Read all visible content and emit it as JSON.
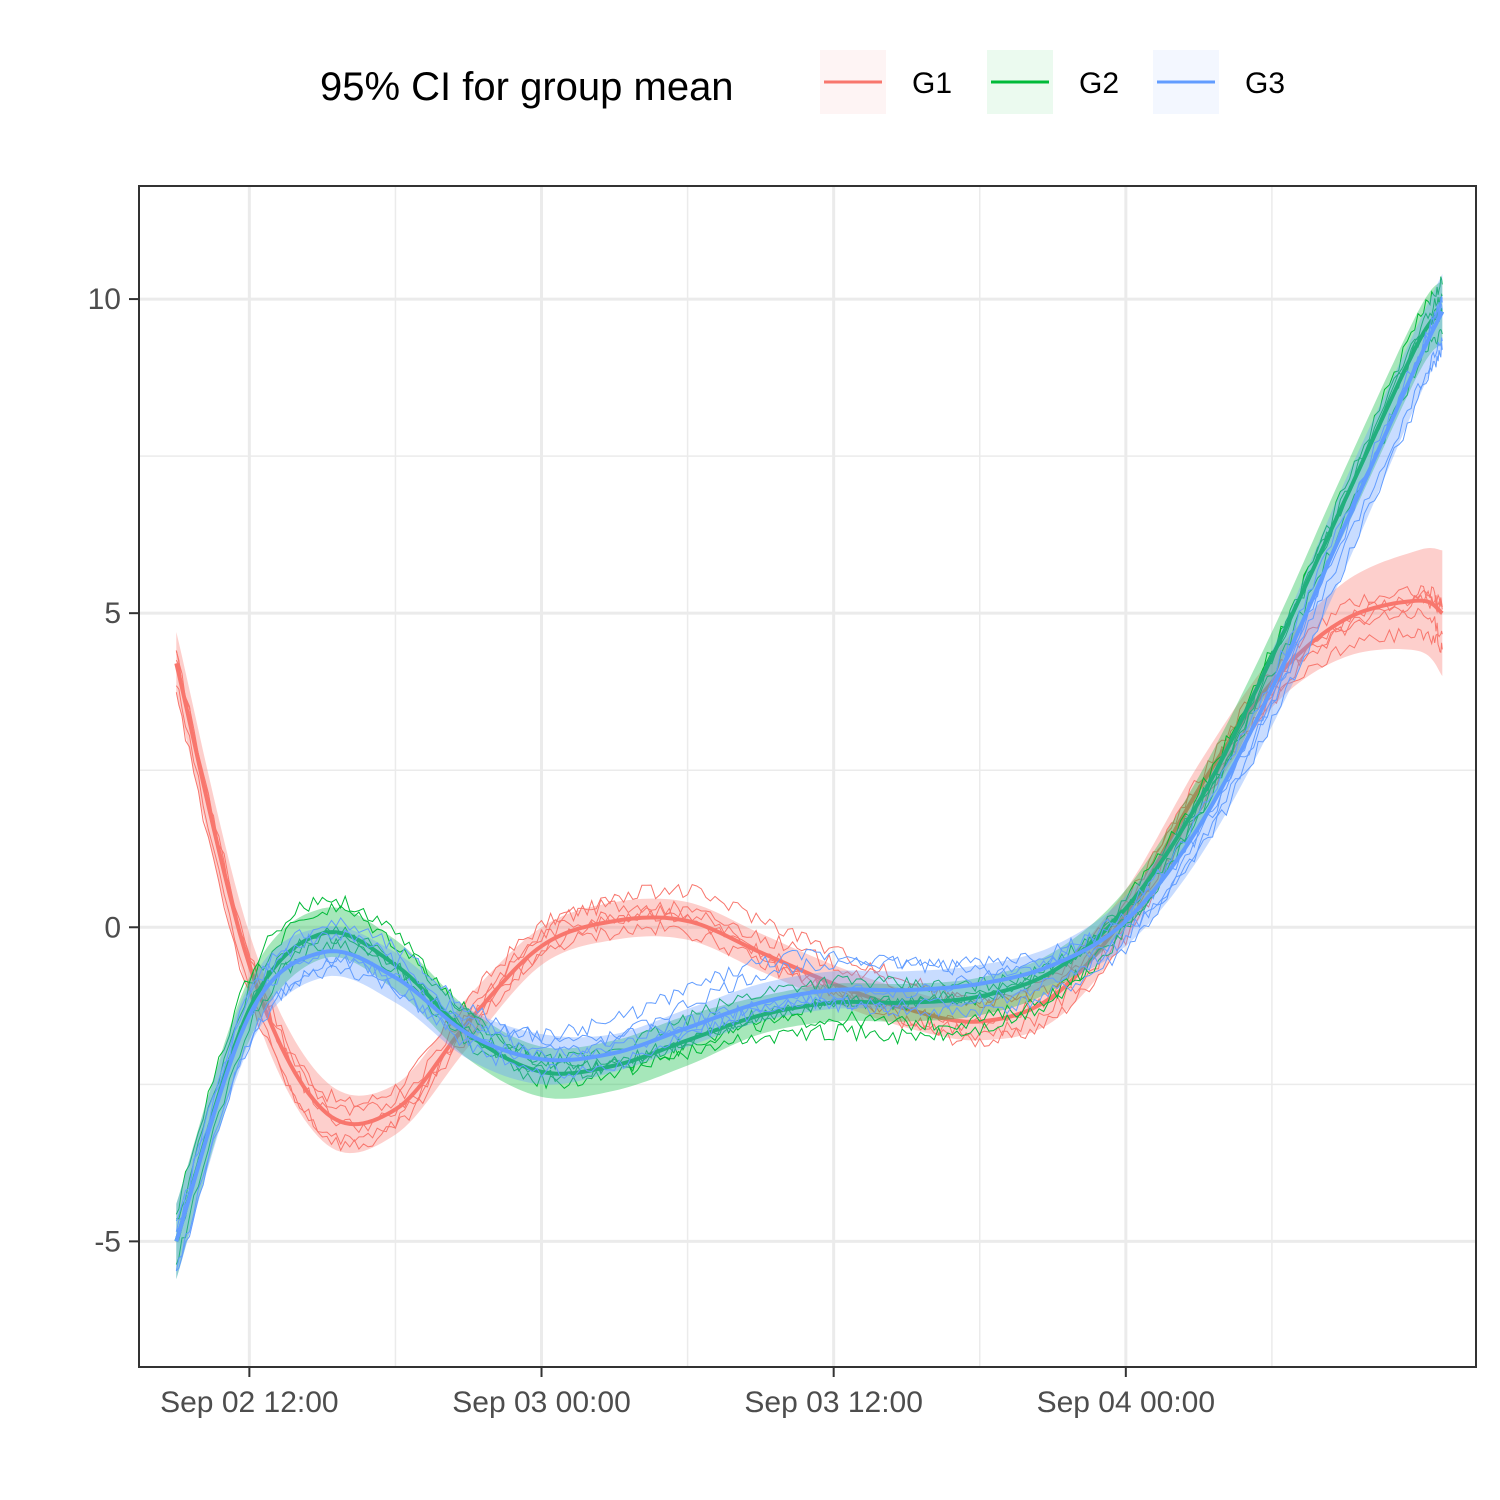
{
  "chart_data": {
    "type": "line",
    "title": "",
    "xlabel": "",
    "ylabel": "",
    "x_axis": {
      "type": "datetime",
      "range": [
        "2024-09-02 07:28",
        "2024-09-04 14:23"
      ],
      "ticks": [
        {
          "value": "2024-09-02 12:00",
          "label": "Sep 02 12:00"
        },
        {
          "value": "2024-09-03 00:00",
          "label": "Sep 03 00:00"
        },
        {
          "value": "2024-09-03 12:00",
          "label": "Sep 03 12:00"
        },
        {
          "value": "2024-09-04 00:00",
          "label": "Sep 04 00:00"
        }
      ]
    },
    "y_axis": {
      "range": [
        -7.0,
        11.8
      ],
      "ticks": [
        {
          "value": -5,
          "label": "-5"
        },
        {
          "value": 0,
          "label": "0"
        },
        {
          "value": 5,
          "label": "5"
        },
        {
          "value": 10,
          "label": "10"
        }
      ],
      "minor_ticks": [
        -2.5,
        2.5,
        7.5
      ]
    },
    "grid": true,
    "legend": {
      "position": "top",
      "title": "95% CI for group mean"
    },
    "series": [
      {
        "name": "G1",
        "color": "#F8766D",
        "x": [
          "2024-09-02 09:00",
          "2024-09-02 12:00",
          "2024-09-02 15:00",
          "2024-09-02 18:00",
          "2024-09-02 21:00",
          "2024-09-03 00:00",
          "2024-09-03 03:00",
          "2024-09-03 06:00",
          "2024-09-03 09:00",
          "2024-09-03 12:00",
          "2024-09-03 15:00",
          "2024-09-03 18:00",
          "2024-09-03 21:00",
          "2024-09-04 00:00",
          "2024-09-04 03:00",
          "2024-09-04 06:00",
          "2024-09-04 09:00",
          "2024-09-04 12:00",
          "2024-09-04 13:00"
        ],
        "mean": [
          4.2,
          -0.6,
          -2.9,
          -2.9,
          -1.5,
          -0.3,
          0.1,
          0.1,
          -0.4,
          -0.9,
          -1.3,
          -1.5,
          -1.1,
          0.2,
          2.2,
          3.9,
          4.9,
          5.2,
          5.0
        ],
        "lower": [
          3.7,
          -1.1,
          -3.4,
          -3.3,
          -1.9,
          -0.6,
          -0.2,
          -0.2,
          -0.7,
          -1.2,
          -1.6,
          -1.8,
          -1.5,
          -0.2,
          1.8,
          3.5,
          4.3,
          4.4,
          4.0
        ],
        "upper": [
          4.7,
          -0.1,
          -2.4,
          -2.5,
          -1.1,
          0.0,
          0.4,
          0.4,
          -0.1,
          -0.6,
          -1.0,
          -1.2,
          -0.7,
          0.6,
          2.6,
          4.3,
          5.5,
          6.0,
          6.0
        ],
        "individuals": [
          {
            "offset": 0.4,
            "phase": 0.3
          },
          {
            "offset": -0.4,
            "phase": 1.1
          },
          {
            "offset": 0.2,
            "phase": 2.4
          },
          {
            "offset": -0.2,
            "phase": 3.7
          },
          {
            "offset": 0.6,
            "phase": 4.9
          }
        ]
      },
      {
        "name": "G2",
        "color": "#00BA38",
        "x": [
          "2024-09-02 09:00",
          "2024-09-02 12:00",
          "2024-09-02 15:00",
          "2024-09-02 18:00",
          "2024-09-02 21:00",
          "2024-09-03 00:00",
          "2024-09-03 03:00",
          "2024-09-03 06:00",
          "2024-09-03 09:00",
          "2024-09-03 12:00",
          "2024-09-03 15:00",
          "2024-09-03 18:00",
          "2024-09-03 21:00",
          "2024-09-04 00:00",
          "2024-09-04 03:00",
          "2024-09-04 06:00",
          "2024-09-04 09:00",
          "2024-09-04 12:00",
          "2024-09-04 13:00"
        ],
        "mean": [
          -5.0,
          -1.3,
          -0.1,
          -0.6,
          -1.7,
          -2.3,
          -2.2,
          -1.8,
          -1.4,
          -1.2,
          -1.2,
          -1.1,
          -0.7,
          0.3,
          2.0,
          4.3,
          6.8,
          9.3,
          9.8
        ],
        "lower": [
          -5.6,
          -1.8,
          -0.5,
          -1.0,
          -2.1,
          -2.7,
          -2.6,
          -2.2,
          -1.7,
          -1.5,
          -1.5,
          -1.4,
          -1.0,
          0.0,
          1.6,
          3.9,
          6.3,
          8.8,
          9.3
        ],
        "upper": [
          -4.4,
          -0.8,
          0.3,
          -0.2,
          -1.3,
          -1.9,
          -1.8,
          -1.4,
          -1.1,
          -0.9,
          -0.9,
          -0.8,
          -0.4,
          0.6,
          2.4,
          4.7,
          7.3,
          9.8,
          10.3
        ],
        "individuals": [
          {
            "offset": 0.4,
            "phase": 0.8
          },
          {
            "offset": -0.4,
            "phase": 1.9
          },
          {
            "offset": 0.15,
            "phase": 3.1
          },
          {
            "offset": -0.6,
            "phase": 4.2
          },
          {
            "offset": 0.0,
            "phase": 5.5
          }
        ]
      },
      {
        "name": "G3",
        "color": "#619CFF",
        "x": [
          "2024-09-02 09:00",
          "2024-09-02 12:00",
          "2024-09-02 15:00",
          "2024-09-02 18:00",
          "2024-09-02 21:00",
          "2024-09-03 00:00",
          "2024-09-03 03:00",
          "2024-09-03 06:00",
          "2024-09-03 09:00",
          "2024-09-03 12:00",
          "2024-09-03 15:00",
          "2024-09-03 18:00",
          "2024-09-03 21:00",
          "2024-09-04 00:00",
          "2024-09-04 03:00",
          "2024-09-04 06:00",
          "2024-09-04 09:00",
          "2024-09-04 12:00",
          "2024-09-04 13:00"
        ],
        "mean": [
          -5.0,
          -1.4,
          -0.4,
          -0.8,
          -1.7,
          -2.1,
          -2.0,
          -1.6,
          -1.2,
          -1.0,
          -1.0,
          -0.9,
          -0.6,
          0.1,
          1.6,
          3.8,
          6.4,
          9.0,
          9.8
        ],
        "lower": [
          -5.6,
          -1.9,
          -0.8,
          -1.2,
          -2.1,
          -2.5,
          -2.3,
          -1.9,
          -1.5,
          -1.3,
          -1.3,
          -1.2,
          -0.9,
          -0.3,
          1.1,
          3.2,
          5.7,
          8.4,
          9.2
        ],
        "upper": [
          -4.4,
          -0.9,
          0.0,
          -0.4,
          -1.3,
          -1.7,
          -1.7,
          -1.3,
          -0.9,
          -0.7,
          -0.7,
          -0.6,
          -0.3,
          0.5,
          2.1,
          4.4,
          7.1,
          9.6,
          10.4
        ],
        "individuals": [
          {
            "offset": 0.5,
            "phase": 0.5
          },
          {
            "offset": -0.5,
            "phase": 1.6
          },
          {
            "offset": 0.2,
            "phase": 2.8
          },
          {
            "offset": -0.3,
            "phase": 3.9
          },
          {
            "offset": 0.7,
            "phase": 5.2
          }
        ]
      }
    ]
  }
}
